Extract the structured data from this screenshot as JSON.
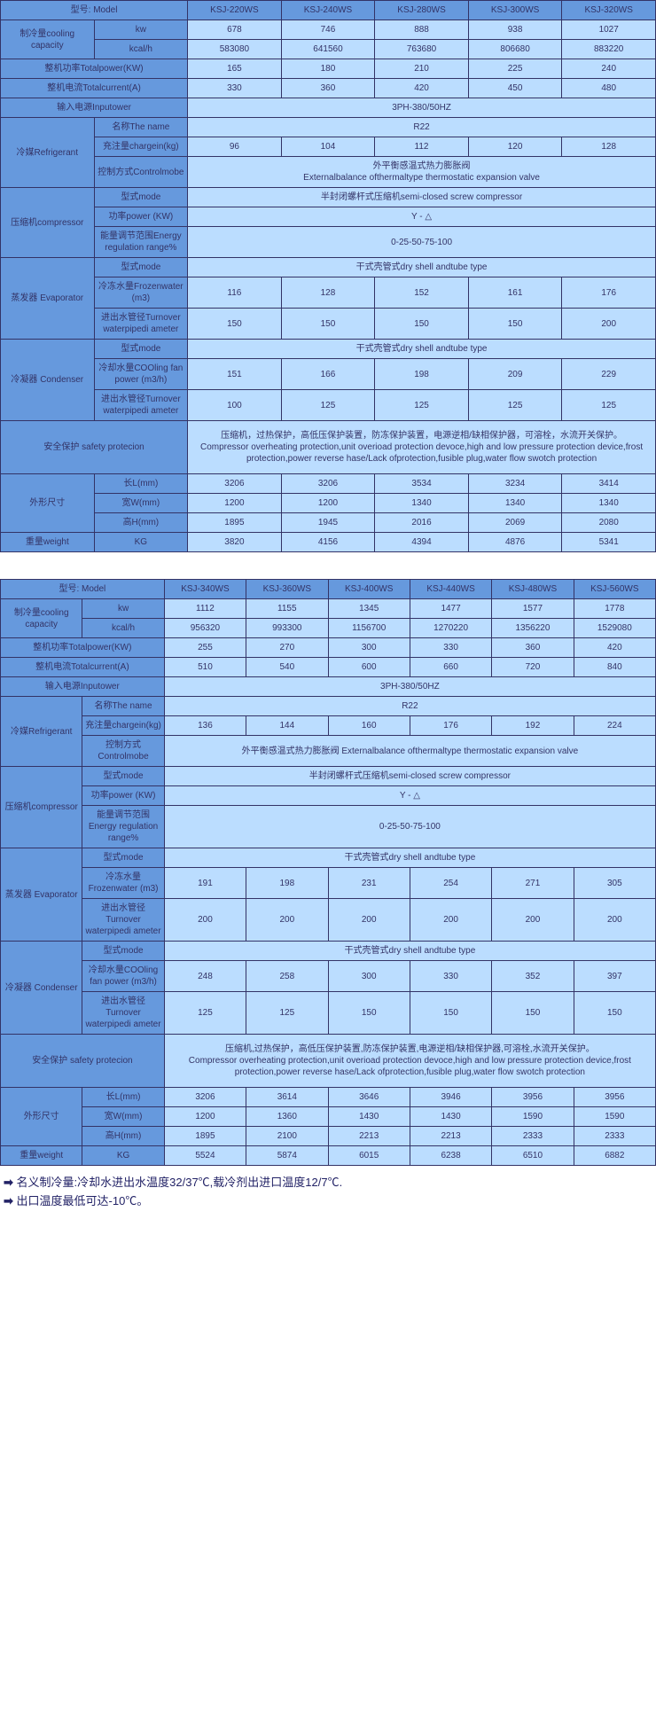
{
  "table1": {
    "models": [
      "KSJ-220WS",
      "KSJ-240WS",
      "KSJ-280WS",
      "KSJ-300WS",
      "KSJ-320WS"
    ],
    "model_label": "型号: Model",
    "rows": [
      {
        "g": "制冷量cooling capacity",
        "gl": 2,
        "l": "kw",
        "v": [
          "678",
          "746",
          "888",
          "938",
          "1027"
        ]
      },
      {
        "g": "",
        "l": "kcal/h",
        "v": [
          "583080",
          "641560",
          "763680",
          "806680",
          "883220"
        ]
      },
      {
        "full": "整机功率Totalpower(KW)",
        "v": [
          "165",
          "180",
          "210",
          "225",
          "240"
        ]
      },
      {
        "full": "整机电流Totalcurrent(A)",
        "v": [
          "330",
          "360",
          "420",
          "450",
          "480"
        ]
      },
      {
        "full": "输入电源Inputower",
        "span": "3PH-380/50HZ"
      },
      {
        "g": "冷媒Refrigerant",
        "gl": 3,
        "l": "名称The name",
        "span": "R22"
      },
      {
        "g": "",
        "l": "充注量chargein(kg)",
        "v": [
          "96",
          "104",
          "112",
          "120",
          "128"
        ]
      },
      {
        "g": "",
        "l": "控制方式Controlmobe",
        "span": "外平衡感温式热力膨胀阀\nExternalbalance ofthermaltype thermostatic expansion valve"
      },
      {
        "g": "压缩机compressor",
        "gl": 3,
        "l": "型式mode",
        "span": "半封闭螺杆式压缩机semi-closed screw compressor"
      },
      {
        "g": "",
        "l": "功率power (KW)",
        "span": "Y - △"
      },
      {
        "g": "",
        "l": "能量调节范围Energy regulation range%",
        "span": "0-25-50-75-100"
      },
      {
        "g": "蒸发器 Evaporator",
        "gl": 3,
        "l": "型式mode",
        "span": "干式壳管式dry shell andtube type"
      },
      {
        "g": "",
        "l": "冷冻水量Frozenwater (m3)",
        "v": [
          "116",
          "128",
          "152",
          "161",
          "176"
        ]
      },
      {
        "g": "",
        "l": "进出水管径Turnover waterpipedi ameter",
        "v": [
          "150",
          "150",
          "150",
          "150",
          "200"
        ]
      },
      {
        "g": "冷凝器 Condenser",
        "gl": 3,
        "l": "型式mode",
        "span": "干式壳管式dry shell andtube type"
      },
      {
        "g": "",
        "l": "冷却水量COOling fan power (m3/h)",
        "v": [
          "151",
          "166",
          "198",
          "209",
          "229"
        ]
      },
      {
        "g": "",
        "l": "进出水管径Turnover waterpipedi ameter",
        "v": [
          "100",
          "125",
          "125",
          "125",
          "125"
        ]
      },
      {
        "fullspan": "安全保护 safety protecion",
        "span": "压缩机，过热保护，高低压保护装置，防冻保护装置，电源逆相/缺相保护器，可溶栓，水流开关保护。\nCompressor overheating protection,unit overioad protection devoce,high and low pressure protection device,frost protection,power reverse hase/Lack ofprotection,fusible plug,water flow swotch protection"
      },
      {
        "g": "外形尺寸",
        "gl": 3,
        "l": "长L(mm)",
        "v": [
          "3206",
          "3206",
          "3534",
          "3234",
          "3414"
        ]
      },
      {
        "g": "",
        "l": "宽W(mm)",
        "v": [
          "1200",
          "1200",
          "1340",
          "1340",
          "1340"
        ]
      },
      {
        "g": "",
        "l": "高H(mm)",
        "v": [
          "1895",
          "1945",
          "2016",
          "2069",
          "2080"
        ]
      },
      {
        "g": "重量weight",
        "gl": 1,
        "l": "KG",
        "v": [
          "3820",
          "4156",
          "4394",
          "4876",
          "5341"
        ]
      }
    ]
  },
  "table2": {
    "models": [
      "KSJ-340WS",
      "KSJ-360WS",
      "KSJ-400WS",
      "KSJ-440WS",
      "KSJ-480WS",
      "KSJ-560WS"
    ],
    "model_label": "型号: Model",
    "rows": [
      {
        "g": "制冷量cooling capacity",
        "gl": 2,
        "l": "kw",
        "v": [
          "1112",
          "1155",
          "1345",
          "1477",
          "1577",
          "1778"
        ]
      },
      {
        "g": "",
        "l": "kcal/h",
        "v": [
          "956320",
          "993300",
          "1156700",
          "1270220",
          "1356220",
          "1529080"
        ]
      },
      {
        "full": "整机功率Totalpower(KW)",
        "v": [
          "255",
          "270",
          "300",
          "330",
          "360",
          "420"
        ]
      },
      {
        "full": "整机电流Totalcurrent(A)",
        "v": [
          "510",
          "540",
          "600",
          "660",
          "720",
          "840"
        ]
      },
      {
        "full": "输入电源Inputower",
        "span": "3PH-380/50HZ"
      },
      {
        "g": "冷媒Refrigerant",
        "gl": 3,
        "l": "名称The name",
        "span": "R22"
      },
      {
        "g": "",
        "l": "充注量chargein(kg)",
        "v": [
          "136",
          "144",
          "160",
          "176",
          "192",
          "224"
        ]
      },
      {
        "g": "",
        "l": "控制方式Controlmobe",
        "span": "外平衡感温式热力膨胀阀 Externalbalance ofthermaltype thermostatic expansion valve"
      },
      {
        "g": "压缩机compressor",
        "gl": 3,
        "l": "型式mode",
        "span": "半封闭螺杆式压缩机semi-closed screw compressor"
      },
      {
        "g": "",
        "l": "功率power (KW)",
        "span": "Y - △"
      },
      {
        "g": "",
        "l": "能量调节范围Energy regulation range%",
        "span": "0-25-50-75-100"
      },
      {
        "g": "蒸发器 Evaporator",
        "gl": 3,
        "l": "型式mode",
        "span": "干式壳管式dry shell andtube type"
      },
      {
        "g": "",
        "l": "冷冻水量Frozenwater (m3)",
        "v": [
          "191",
          "198",
          "231",
          "254",
          "271",
          "305"
        ]
      },
      {
        "g": "",
        "l": "进出水管径Turnover waterpipedi ameter",
        "v": [
          "200",
          "200",
          "200",
          "200",
          "200",
          "200"
        ]
      },
      {
        "g": "冷凝器 Condenser",
        "gl": 3,
        "l": "型式mode",
        "span": "干式壳管式dry shell andtube type"
      },
      {
        "g": "",
        "l": "冷却水量COOling fan power (m3/h)",
        "v": [
          "248",
          "258",
          "300",
          "330",
          "352",
          "397"
        ]
      },
      {
        "g": "",
        "l": "进出水管径Turnover waterpipedi ameter",
        "v": [
          "125",
          "125",
          "150",
          "150",
          "150",
          "150"
        ]
      },
      {
        "fullspan": "安全保护 safety protecion",
        "span": "压缩机,过热保护，高低压保护装置,防冻保护装置,电源逆相/缺相保护器,可溶栓,水流开关保护。\nCompressor overheating protection,unit overioad protection devoce,high and low pressure protection device,frost protection,power reverse hase/Lack ofprotection,fusible plug,water flow swotch protection"
      },
      {
        "g": "外形尺寸",
        "gl": 3,
        "l": "长L(mm)",
        "v": [
          "3206",
          "3614",
          "3646",
          "3946",
          "3956",
          "3956"
        ]
      },
      {
        "g": "",
        "l": "宽W(mm)",
        "v": [
          "1200",
          "1360",
          "1430",
          "1430",
          "1590",
          "1590"
        ]
      },
      {
        "g": "",
        "l": "高H(mm)",
        "v": [
          "1895",
          "2100",
          "2213",
          "2213",
          "2333",
          "2333"
        ]
      },
      {
        "g": "重量weight",
        "gl": 1,
        "l": "KG",
        "v": [
          "5524",
          "5874",
          "6015",
          "6238",
          "6510",
          "6882"
        ]
      }
    ]
  },
  "notes": [
    "名义制冷量:冷却水进出水温度32/37℃,载冷剂出进口温度12/7℃.",
    "出口温度最低可达-10℃。"
  ],
  "colors": {
    "hdr": "#6699dd",
    "cell": "#bbddff",
    "border": "#333366",
    "text": "#333366"
  }
}
